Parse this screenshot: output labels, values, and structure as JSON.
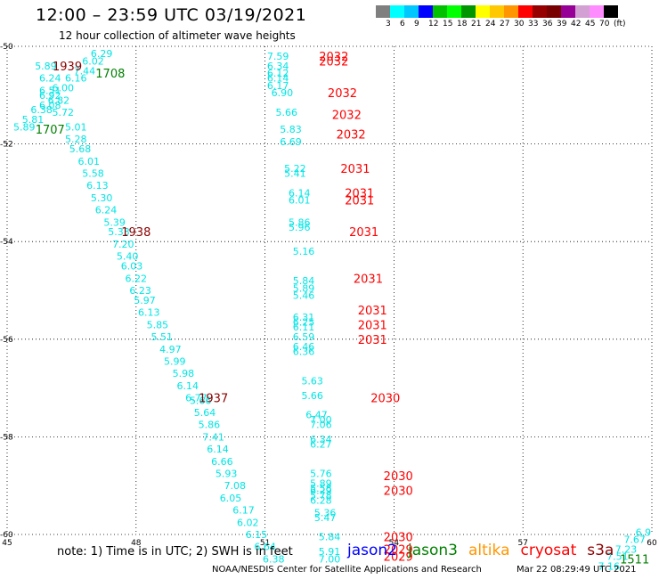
{
  "header": {
    "title": "12:00 – 23:59 UTC 03/19/2021",
    "subtitle": "12 hour collection of altimeter wave heights"
  },
  "colorbar": {
    "colors": [
      "#7f7f7f",
      "#00ffff",
      "#00c8ff",
      "#0000ff",
      "#00c000",
      "#00ff00",
      "#009600",
      "#ffff00",
      "#ffc800",
      "#ff9600",
      "#ff0000",
      "#960000",
      "#780000",
      "#960096",
      "#d2a0d2",
      "#ff8cff",
      "#000000"
    ],
    "labels": [
      "3",
      "6",
      "9",
      "12",
      "15",
      "18",
      "21",
      "24",
      "27",
      "30",
      "33",
      "36",
      "39",
      "42",
      "45",
      "70",
      "(ft)"
    ]
  },
  "chart_data": {
    "type": "scatter",
    "xlim": [
      45,
      60
    ],
    "ylim": [
      -60,
      -50
    ],
    "x_ticks": [
      "45",
      "48",
      "51",
      "54",
      "57",
      "60"
    ],
    "y_ticks": [
      "-50",
      "-52",
      "-54",
      "-56",
      "-58",
      "-60"
    ],
    "grid": true,
    "series": [
      {
        "name": "pass-1",
        "color": "#00e5e5",
        "points": [
          {
            "x": 47.2,
            "y": -50.15,
            "label": "6.29"
          },
          {
            "x": 47.0,
            "y": -50.3,
            "label": "6.02"
          },
          {
            "x": 46.8,
            "y": -50.5,
            "label": "7.44"
          },
          {
            "x": 46.6,
            "y": -50.65,
            "label": "6.16"
          },
          {
            "x": 46.3,
            "y": -50.85,
            "label": "6.00"
          },
          {
            "x": 46.2,
            "y": -51.1,
            "label": "6.82"
          },
          {
            "x": 46.3,
            "y": -51.35,
            "label": "5.72"
          },
          {
            "x": 46.6,
            "y": -51.65,
            "label": "5.01"
          },
          {
            "x": 46.6,
            "y": -51.9,
            "label": "5.28"
          },
          {
            "x": 46.7,
            "y": -52.1,
            "label": "5.68"
          },
          {
            "x": 46.9,
            "y": -52.35,
            "label": "6.01"
          },
          {
            "x": 47.0,
            "y": -52.6,
            "label": "5.58"
          },
          {
            "x": 47.1,
            "y": -52.85,
            "label": "6.13"
          },
          {
            "x": 47.2,
            "y": -53.1,
            "label": "5.30"
          },
          {
            "x": 47.3,
            "y": -53.35,
            "label": "6.24"
          },
          {
            "x": 47.5,
            "y": -53.6,
            "label": "5.39"
          },
          {
            "x": 47.6,
            "y": -53.8,
            "label": "5.33"
          },
          {
            "x": 47.7,
            "y": -54.05,
            "label": "7.20"
          },
          {
            "x": 47.8,
            "y": -54.3,
            "label": "5.40"
          },
          {
            "x": 47.9,
            "y": -54.5,
            "label": "6.03"
          },
          {
            "x": 48.0,
            "y": -54.75,
            "label": "6.22"
          },
          {
            "x": 48.1,
            "y": -55.0,
            "label": "6.23"
          },
          {
            "x": 48.2,
            "y": -55.2,
            "label": "5.97"
          },
          {
            "x": 48.3,
            "y": -55.45,
            "label": "6.13"
          },
          {
            "x": 48.5,
            "y": -55.7,
            "label": "5.85"
          },
          {
            "x": 48.6,
            "y": -55.95,
            "label": "5.51"
          },
          {
            "x": 48.8,
            "y": -56.2,
            "label": "4.97"
          },
          {
            "x": 48.9,
            "y": -56.45,
            "label": "5.99"
          },
          {
            "x": 49.1,
            "y": -56.7,
            "label": "5.98"
          },
          {
            "x": 49.2,
            "y": -56.95,
            "label": "6.14"
          },
          {
            "x": 49.4,
            "y": -57.2,
            "label": "6.77"
          },
          {
            "x": 49.5,
            "y": -57.25,
            "label": "5.66"
          },
          {
            "x": 49.6,
            "y": -57.5,
            "label": "5.64"
          },
          {
            "x": 49.7,
            "y": -57.75,
            "label": "5.86"
          },
          {
            "x": 49.8,
            "y": -58.0,
            "label": "7.41"
          },
          {
            "x": 49.9,
            "y": -58.25,
            "label": "6.14"
          },
          {
            "x": 50.0,
            "y": -58.5,
            "label": "6.66"
          },
          {
            "x": 50.1,
            "y": -58.75,
            "label": "5.93"
          },
          {
            "x": 50.3,
            "y": -59.0,
            "label": "7.08"
          },
          {
            "x": 50.2,
            "y": -59.25,
            "label": "6.05"
          },
          {
            "x": 50.5,
            "y": -59.5,
            "label": "6.17"
          },
          {
            "x": 50.6,
            "y": -59.75,
            "label": "6.02"
          },
          {
            "x": 50.8,
            "y": -60.0,
            "label": "6.15"
          },
          {
            "x": 51.0,
            "y": -60.25,
            "label": "6.64"
          },
          {
            "x": 51.2,
            "y": -60.5,
            "label": "6.38"
          }
        ]
      },
      {
        "name": "pass-2",
        "color": "#00e5e5",
        "points": [
          {
            "x": 45.9,
            "y": -50.4,
            "label": "5.89"
          },
          {
            "x": 46.0,
            "y": -50.65,
            "label": "6.24"
          },
          {
            "x": 46.0,
            "y": -50.9,
            "label": "6.51"
          },
          {
            "x": 46.0,
            "y": -51.0,
            "label": "6.92"
          },
          {
            "x": 46.0,
            "y": -51.2,
            "label": "6.08"
          },
          {
            "x": 45.8,
            "y": -51.3,
            "label": "6.38"
          },
          {
            "x": 45.6,
            "y": -51.5,
            "label": "5.81"
          },
          {
            "x": 45.4,
            "y": -51.65,
            "label": "5.89"
          }
        ]
      },
      {
        "name": "pass-3",
        "color": "#00e5e5",
        "points": [
          {
            "x": 51.3,
            "y": -50.2,
            "label": "7.59"
          },
          {
            "x": 51.3,
            "y": -50.4,
            "label": "6.34"
          },
          {
            "x": 51.3,
            "y": -50.55,
            "label": "6.12"
          },
          {
            "x": 51.3,
            "y": -50.65,
            "label": "6.14"
          },
          {
            "x": 51.3,
            "y": -50.8,
            "label": "6.17"
          },
          {
            "x": 51.4,
            "y": -50.95,
            "label": "6.90"
          },
          {
            "x": 51.5,
            "y": -51.35,
            "label": "5.66"
          },
          {
            "x": 51.6,
            "y": -51.7,
            "label": "5.83"
          },
          {
            "x": 51.6,
            "y": -51.95,
            "label": "6.69"
          },
          {
            "x": 51.7,
            "y": -52.5,
            "label": "5.22"
          },
          {
            "x": 51.7,
            "y": -52.6,
            "label": "5.41"
          },
          {
            "x": 51.8,
            "y": -53.0,
            "label": "6.14"
          },
          {
            "x": 51.8,
            "y": -53.15,
            "label": "6.01"
          },
          {
            "x": 51.8,
            "y": -53.6,
            "label": "5.86"
          },
          {
            "x": 51.8,
            "y": -53.7,
            "label": "5.96"
          },
          {
            "x": 51.9,
            "y": -54.2,
            "label": "5.16"
          },
          {
            "x": 51.9,
            "y": -54.8,
            "label": "5.84"
          },
          {
            "x": 51.9,
            "y": -54.95,
            "label": "5.89"
          },
          {
            "x": 51.9,
            "y": -55.1,
            "label": "5.46"
          },
          {
            "x": 51.9,
            "y": -55.55,
            "label": "6.31"
          },
          {
            "x": 51.9,
            "y": -55.65,
            "label": "6.25"
          },
          {
            "x": 51.9,
            "y": -55.75,
            "label": "6.11"
          },
          {
            "x": 51.9,
            "y": -55.95,
            "label": "6.59"
          },
          {
            "x": 51.9,
            "y": -56.15,
            "label": "6.46"
          },
          {
            "x": 51.9,
            "y": -56.25,
            "label": "6.36"
          },
          {
            "x": 52.1,
            "y": -56.85,
            "label": "5.63"
          },
          {
            "x": 52.1,
            "y": -57.15,
            "label": "5.66"
          },
          {
            "x": 52.2,
            "y": -57.55,
            "label": "6.47"
          },
          {
            "x": 52.3,
            "y": -57.65,
            "label": "7.00"
          },
          {
            "x": 52.3,
            "y": -57.75,
            "label": "7.06"
          },
          {
            "x": 52.3,
            "y": -58.05,
            "label": "6.34"
          },
          {
            "x": 52.3,
            "y": -58.15,
            "label": "6.27"
          },
          {
            "x": 52.3,
            "y": -58.75,
            "label": "5.76"
          },
          {
            "x": 52.3,
            "y": -58.95,
            "label": "5.89"
          },
          {
            "x": 52.3,
            "y": -59.05,
            "label": "5.58"
          },
          {
            "x": 52.3,
            "y": -59.1,
            "label": "6.29"
          },
          {
            "x": 52.3,
            "y": -59.2,
            "label": "5.78"
          },
          {
            "x": 52.3,
            "y": -59.3,
            "label": "6.28"
          },
          {
            "x": 52.4,
            "y": -59.55,
            "label": "5.36"
          },
          {
            "x": 52.4,
            "y": -59.65,
            "label": "5.47"
          },
          {
            "x": 52.5,
            "y": -60.05,
            "label": "5.84"
          },
          {
            "x": 52.5,
            "y": -60.35,
            "label": "5.91"
          },
          {
            "x": 52.5,
            "y": -60.5,
            "label": "7.00"
          }
        ]
      },
      {
        "name": "pass-4",
        "color": "#00e5e5",
        "points": [
          {
            "x": 59.0,
            "y": -60.65,
            "label": "7.16"
          },
          {
            "x": 59.2,
            "y": -60.45,
            "label": "7.51"
          },
          {
            "x": 59.4,
            "y": -60.3,
            "label": "7.23"
          },
          {
            "x": 59.6,
            "y": -60.1,
            "label": "7.67"
          },
          {
            "x": 59.8,
            "y": -59.95,
            "label": "6.9"
          }
        ]
      }
    ],
    "time_labels": [
      {
        "x": 46.4,
        "y": -50.4,
        "label": "1939",
        "color": "#8b0000"
      },
      {
        "x": 47.4,
        "y": -50.55,
        "label": "1708",
        "color": "#008000"
      },
      {
        "x": 46.0,
        "y": -51.7,
        "label": "1707",
        "color": "#008000"
      },
      {
        "x": 48.0,
        "y": -53.8,
        "label": "1938",
        "color": "#8b0000"
      },
      {
        "x": 49.8,
        "y": -57.2,
        "label": "1937",
        "color": "#8b0000"
      },
      {
        "x": 52.6,
        "y": -50.2,
        "label": "2032",
        "color": "#ff0000"
      },
      {
        "x": 52.6,
        "y": -50.3,
        "label": "2032",
        "color": "#ff0000"
      },
      {
        "x": 52.8,
        "y": -50.95,
        "label": "2032",
        "color": "#ff0000"
      },
      {
        "x": 52.9,
        "y": -51.4,
        "label": "2032",
        "color": "#ff0000"
      },
      {
        "x": 53.0,
        "y": -51.8,
        "label": "2032",
        "color": "#ff0000"
      },
      {
        "x": 53.1,
        "y": -52.5,
        "label": "2031",
        "color": "#ff0000"
      },
      {
        "x": 53.2,
        "y": -53.0,
        "label": "2031",
        "color": "#ff0000"
      },
      {
        "x": 53.2,
        "y": -53.15,
        "label": "2031",
        "color": "#ff0000"
      },
      {
        "x": 53.3,
        "y": -53.8,
        "label": "2031",
        "color": "#ff0000"
      },
      {
        "x": 53.4,
        "y": -54.75,
        "label": "2031",
        "color": "#ff0000"
      },
      {
        "x": 53.5,
        "y": -55.4,
        "label": "2031",
        "color": "#ff0000"
      },
      {
        "x": 53.5,
        "y": -55.7,
        "label": "2031",
        "color": "#ff0000"
      },
      {
        "x": 53.5,
        "y": -56.0,
        "label": "2031",
        "color": "#ff0000"
      },
      {
        "x": 53.8,
        "y": -57.2,
        "label": "2030",
        "color": "#ff0000"
      },
      {
        "x": 54.1,
        "y": -58.8,
        "label": "2030",
        "color": "#ff0000"
      },
      {
        "x": 54.1,
        "y": -59.1,
        "label": "2030",
        "color": "#ff0000"
      },
      {
        "x": 54.1,
        "y": -60.05,
        "label": "2030",
        "color": "#ff0000"
      },
      {
        "x": 54.1,
        "y": -60.3,
        "label": "2029",
        "color": "#ff0000"
      },
      {
        "x": 54.1,
        "y": -60.45,
        "label": "2029",
        "color": "#ff0000"
      },
      {
        "x": 59.6,
        "y": -60.5,
        "label": "1511",
        "color": "#008000"
      }
    ]
  },
  "footer": {
    "note": "note:  1) Time is in UTC;  2) SWH is in feet",
    "satellites": [
      {
        "name": "jason2",
        "color": "#0000ff"
      },
      {
        "name": "jason3",
        "color": "#008000"
      },
      {
        "name": "altika",
        "color": "#ff9600"
      },
      {
        "name": "cryosat",
        "color": "#ff0000"
      },
      {
        "name": "s3a",
        "color": "#8b0000"
      }
    ],
    "credit": "NOAA/NESDIS Center for Satellite Applications and Research",
    "timestamp": "Mar 22 08:29:49 UTC 2021"
  }
}
